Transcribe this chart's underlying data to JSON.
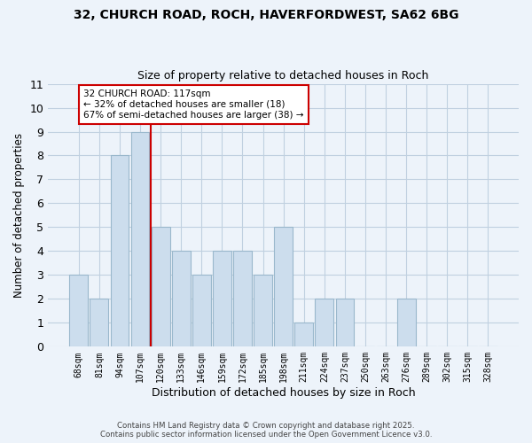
{
  "title_line1": "32, CHURCH ROAD, ROCH, HAVERFORDWEST, SA62 6BG",
  "title_line2": "Size of property relative to detached houses in Roch",
  "xlabel": "Distribution of detached houses by size in Roch",
  "ylabel": "Number of detached properties",
  "bar_labels": [
    "68sqm",
    "81sqm",
    "94sqm",
    "107sqm",
    "120sqm",
    "133sqm",
    "146sqm",
    "159sqm",
    "172sqm",
    "185sqm",
    "198sqm",
    "211sqm",
    "224sqm",
    "237sqm",
    "250sqm",
    "263sqm",
    "276sqm",
    "289sqm",
    "302sqm",
    "315sqm",
    "328sqm"
  ],
  "bar_values": [
    3,
    2,
    8,
    9,
    5,
    4,
    3,
    4,
    4,
    3,
    5,
    1,
    2,
    2,
    0,
    0,
    2,
    0,
    0,
    0,
    0
  ],
  "bar_color": "#ccdded",
  "bar_edge_color": "#9ab8cc",
  "grid_color": "#c0d0e0",
  "reference_line_x": 3.5,
  "reference_line_color": "#cc0000",
  "annotation_text": "32 CHURCH ROAD: 117sqm\n← 32% of detached houses are smaller (18)\n67% of semi-detached houses are larger (38) →",
  "annotation_box_color": "#ffffff",
  "annotation_box_edge": "#cc0000",
  "ylim": [
    0,
    11
  ],
  "yticks": [
    0,
    1,
    2,
    3,
    4,
    5,
    6,
    7,
    8,
    9,
    10,
    11
  ],
  "footer_line1": "Contains HM Land Registry data © Crown copyright and database right 2025.",
  "footer_line2": "Contains public sector information licensed under the Open Government Licence v3.0.",
  "bg_color": "#edf3fa",
  "plot_bg_color": "#edf3fa"
}
